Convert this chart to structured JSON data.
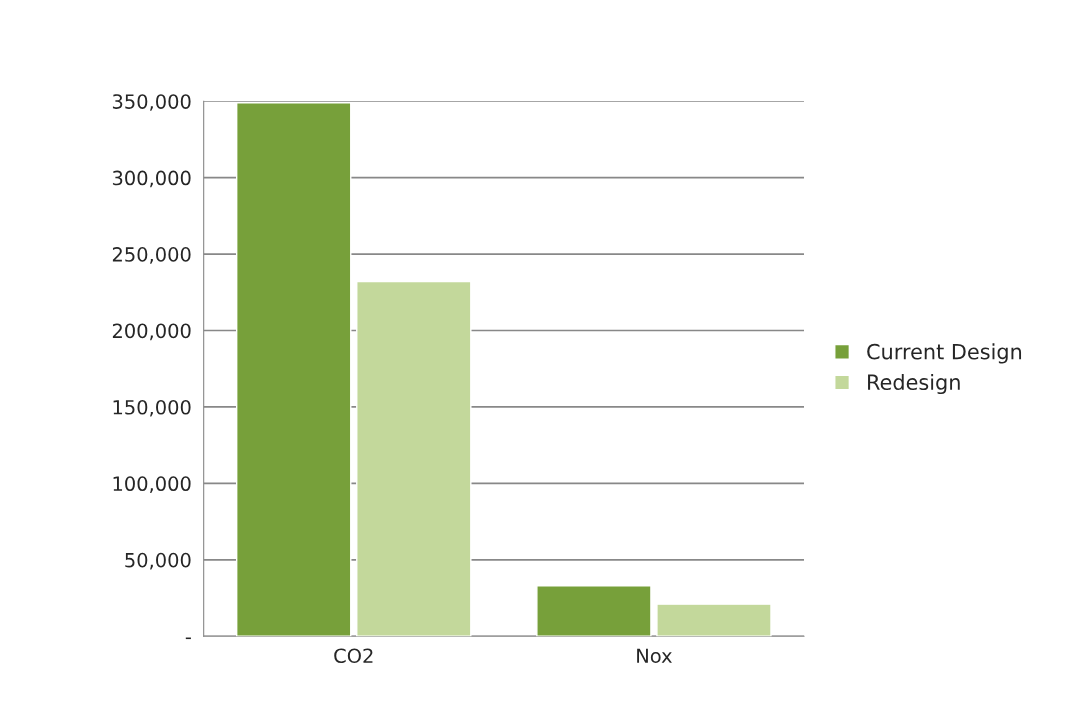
{
  "chart_data": {
    "type": "bar",
    "categories": [
      "CO2",
      "Nox"
    ],
    "series": [
      {
        "name": "Current Design",
        "color": "#77a03a",
        "values": [
          349000,
          33000
        ]
      },
      {
        "name": "Redesign",
        "color": "#c3d89b",
        "values": [
          232000,
          21000
        ]
      }
    ],
    "ylim": [
      0,
      350000
    ],
    "yticks": [
      {
        "value": 0,
        "label": "-"
      },
      {
        "value": 50000,
        "label": "50,000"
      },
      {
        "value": 100000,
        "label": "100,000"
      },
      {
        "value": 150000,
        "label": "150,000"
      },
      {
        "value": 200000,
        "label": "200,000"
      },
      {
        "value": 250000,
        "label": "250,000"
      },
      {
        "value": 300000,
        "label": "300,000"
      },
      {
        "value": 350000,
        "label": "350,000"
      }
    ],
    "grid": "y",
    "legend": "right"
  }
}
